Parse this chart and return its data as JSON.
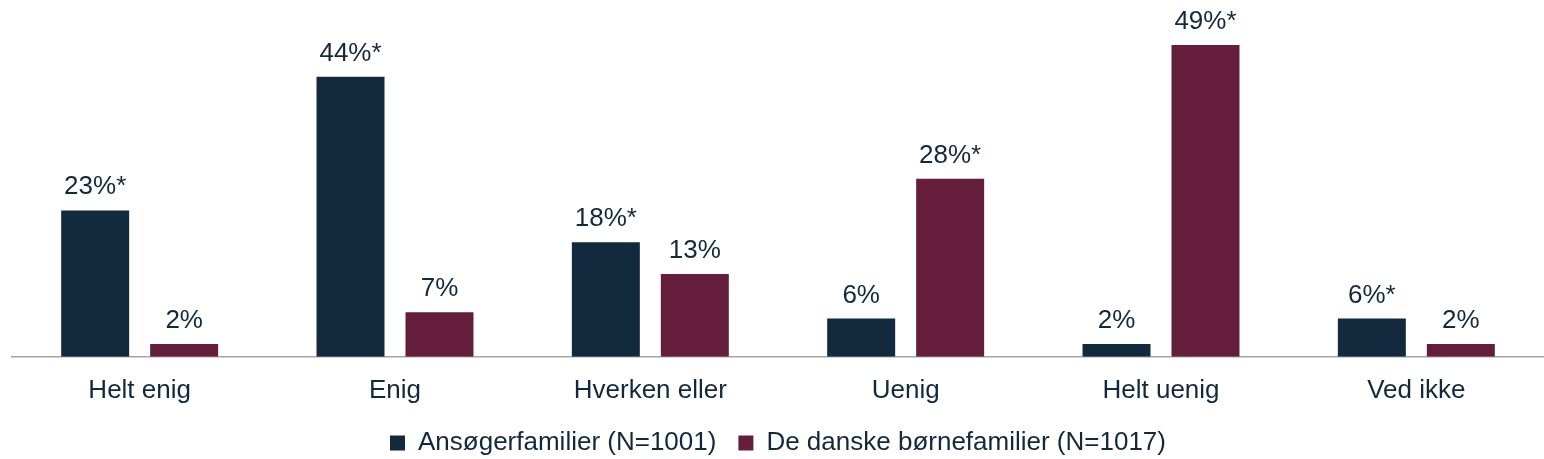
{
  "chart_data": {
    "type": "bar",
    "categories": [
      "Helt enig",
      "Enig",
      "Hverken eller",
      "Uenig",
      "Helt uenig",
      "Ved ikke"
    ],
    "series": [
      {
        "name": "Ansøgerfamilier (N=1001)",
        "color": "#13293d",
        "values": [
          23,
          44,
          18,
          6,
          2,
          6
        ],
        "value_labels": [
          "23%*",
          "44%*",
          "18%*",
          "6%",
          "2%",
          "6%*"
        ]
      },
      {
        "name": "De danske børnefamilier (N=1017)",
        "color": "#641e3b",
        "values": [
          2,
          7,
          13,
          28,
          49,
          2
        ],
        "value_labels": [
          "2%",
          "7%",
          "13%",
          "28%*",
          "49%*",
          "2%"
        ]
      }
    ],
    "legend": "bottom",
    "tick_labels": "x"
  }
}
